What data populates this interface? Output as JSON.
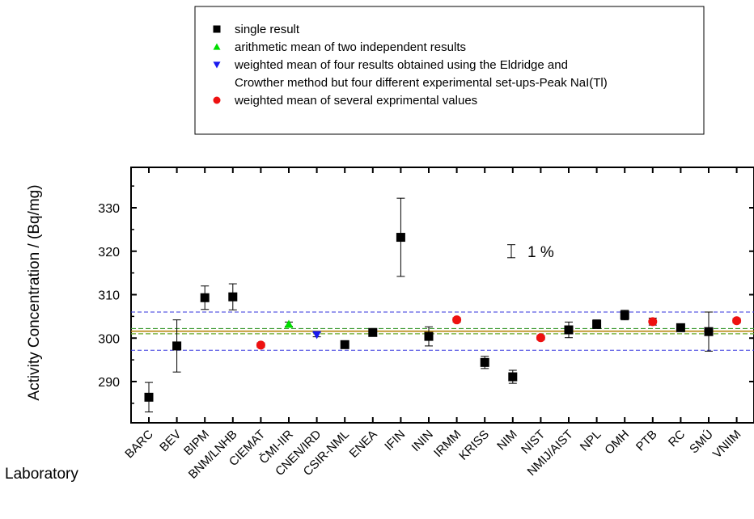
{
  "chart_data": {
    "type": "scatter",
    "title": "",
    "xlabel": "Laboratory",
    "ylabel": "Activity Concentration / (Bq/mg)",
    "ylim": [
      280,
      337
    ],
    "yticks": [
      290,
      300,
      310,
      320,
      330
    ],
    "categories": [
      "BARC",
      "BEV",
      "BIPM",
      "BNM/LNHB",
      "CIEMAT",
      "ČMI-IIR",
      "CNEN/IRD",
      "CSIR-NML",
      "ENEA",
      "IFIN",
      "ININ",
      "IRMM",
      "KRISS",
      "NIM",
      "NIST",
      "NMIJ/AIST",
      "NPL",
      "OMH",
      "PTB",
      "RC",
      "SMÚ",
      "VNIIM"
    ],
    "points": [
      {
        "lab": "BARC",
        "value": 286.4,
        "unc": 3.4,
        "marker": "square"
      },
      {
        "lab": "BEV",
        "value": 298.2,
        "unc": 6.0,
        "marker": "square"
      },
      {
        "lab": "BIPM",
        "value": 309.3,
        "unc": 2.7,
        "marker": "square"
      },
      {
        "lab": "BNM/LNHB",
        "value": 309.5,
        "unc": 3.0,
        "marker": "square"
      },
      {
        "lab": "CIEMAT",
        "value": 298.4,
        "unc": 0.5,
        "marker": "circle"
      },
      {
        "lab": "ČMI-IIR",
        "value": 303.2,
        "unc": 0.5,
        "marker": "triangle-up"
      },
      {
        "lab": "CNEN/IRD",
        "value": 300.8,
        "unc": 0.5,
        "marker": "triangle-down"
      },
      {
        "lab": "CSIR-NML",
        "value": 298.5,
        "unc": 0.5,
        "marker": "square"
      },
      {
        "lab": "ENEA",
        "value": 301.3,
        "unc": 0.8,
        "marker": "square"
      },
      {
        "lab": "IFIN",
        "value": 323.2,
        "unc": 9.0,
        "marker": "square"
      },
      {
        "lab": "ININ",
        "value": 300.4,
        "unc": 2.2,
        "marker": "square"
      },
      {
        "lab": "IRMM",
        "value": 304.2,
        "unc": 0.5,
        "marker": "circle"
      },
      {
        "lab": "KRISS",
        "value": 294.4,
        "unc": 1.4,
        "marker": "square"
      },
      {
        "lab": "NIM",
        "value": 291.1,
        "unc": 1.5,
        "marker": "square"
      },
      {
        "lab": "NIST",
        "value": 300.1,
        "unc": 0.5,
        "marker": "circle"
      },
      {
        "lab": "NMIJ/AIST",
        "value": 301.9,
        "unc": 1.8,
        "marker": "square"
      },
      {
        "lab": "NPL",
        "value": 303.2,
        "unc": 1.0,
        "marker": "square"
      },
      {
        "lab": "OMH",
        "value": 305.3,
        "unc": 1.1,
        "marker": "square"
      },
      {
        "lab": "PTB",
        "value": 303.8,
        "unc": 0.8,
        "marker": "circle"
      },
      {
        "lab": "RC",
        "value": 302.4,
        "unc": 0.8,
        "marker": "square"
      },
      {
        "lab": "SMÚ",
        "value": 301.5,
        "unc": 4.5,
        "marker": "square"
      },
      {
        "lab": "VNIIM",
        "value": 304.0,
        "unc": 0.5,
        "marker": "circle"
      }
    ],
    "reference_lines": {
      "mean": 301.6,
      "mean_color": "#b8860b",
      "inner_band": [
        301.0,
        302.2
      ],
      "inner_band_low_color": "#6aaa2a",
      "inner_band_high_color": "#3c9a32",
      "one_percent_band": [
        297.2,
        306.0
      ],
      "one_percent_color": "#3333dd"
    },
    "annotation": {
      "text": "1 %",
      "bar_low": 318.5,
      "bar_high": 321.5
    },
    "legend": {
      "position": "top",
      "entries": [
        {
          "marker": "square",
          "color": "#000000",
          "lines": [
            "single result"
          ]
        },
        {
          "marker": "triangle-up",
          "color": "#00dd00",
          "lines": [
            "arithmetic mean of two independent results"
          ]
        },
        {
          "marker": "triangle-down",
          "color": "#1a1aee",
          "lines": [
            "weighted mean of four results obtained using the Eldridge and",
            "Crowther method but four different experimental set-ups-Peak NaI(Tl)"
          ]
        },
        {
          "marker": "circle",
          "color": "#ee1111",
          "lines": [
            "weighted mean of several exprimental values"
          ]
        }
      ]
    },
    "colors": {
      "square": "#000000",
      "triangle-up": "#00dd00",
      "triangle-down": "#1a1aee",
      "circle": "#ee1111"
    }
  }
}
